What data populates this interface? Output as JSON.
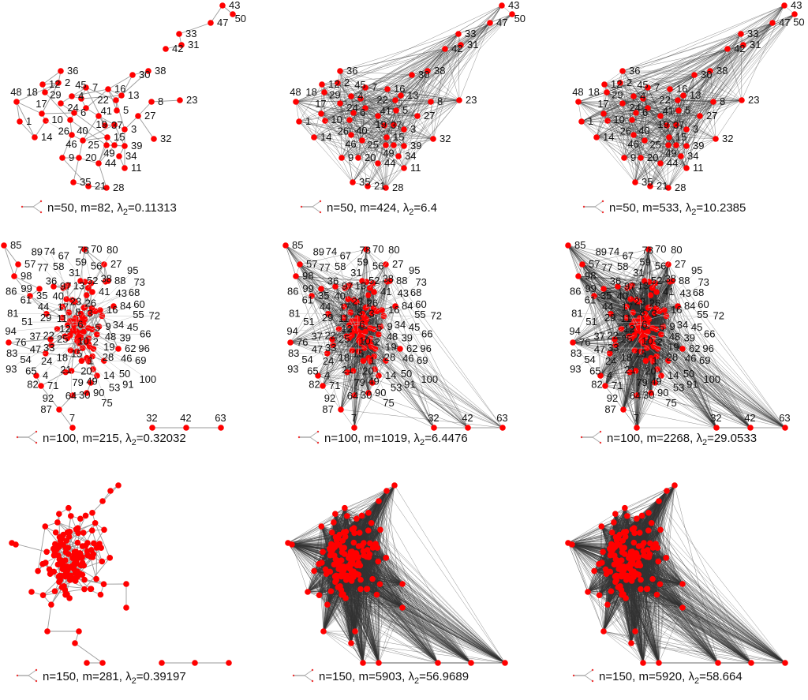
{
  "colors": {
    "node": "#ff0000",
    "sparse_edge": "#9a9a9a",
    "dense_edge": "#333333",
    "text": "#111111"
  },
  "legend_icon": "graph-glyph-icon",
  "panels": [
    {
      "row": 0,
      "col": 0,
      "n": "50",
      "m": "82",
      "lambda2": "0.11313",
      "show_labels": true
    },
    {
      "row": 0,
      "col": 1,
      "n": "50",
      "m": "424",
      "lambda2": "6.4",
      "show_labels": true
    },
    {
      "row": 0,
      "col": 2,
      "n": "50",
      "m": "533",
      "lambda2": "10.2385",
      "show_labels": true
    },
    {
      "row": 1,
      "col": 0,
      "n": "100",
      "m": "215",
      "lambda2": "0.32032",
      "show_labels": true
    },
    {
      "row": 1,
      "col": 1,
      "n": "100",
      "m": "1019",
      "lambda2": "6.4476",
      "show_labels": true
    },
    {
      "row": 1,
      "col": 2,
      "n": "100",
      "m": "2268",
      "lambda2": "29.0533",
      "show_labels": true
    },
    {
      "row": 2,
      "col": 0,
      "n": "150",
      "m": "281",
      "lambda2": "0.39197",
      "show_labels": false
    },
    {
      "row": 2,
      "col": 1,
      "n": "150",
      "m": "5903",
      "lambda2": "56.9689",
      "show_labels": false
    },
    {
      "row": 2,
      "col": 2,
      "n": "150",
      "m": "5920",
      "lambda2": "58.664",
      "show_labels": false
    }
  ],
  "caption_parts": {
    "n_prefix": "n=",
    "m_prefix": ", m=",
    "lambda_sep": ", ",
    "lambda": "λ",
    "lambda_sub": "2",
    "eq": "="
  }
}
